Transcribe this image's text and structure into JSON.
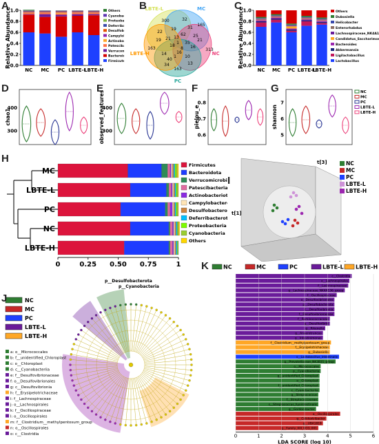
{
  "panels": {
    "A": {
      "label": "A",
      "ylabel": "Relative Abundance",
      "yticks": [
        "0.0",
        "0.2",
        "0.4",
        "0.6",
        "0.8",
        "1.0"
      ],
      "groups": [
        "NC",
        "MC",
        "PC",
        "LBTE-L",
        "LBTE-H"
      ],
      "legend": [
        {
          "name": "Others",
          "color": "#2e7d32"
        },
        {
          "name": "Cyanobacteria",
          "color": "#5e35b1"
        },
        {
          "name": "Proteobacteria",
          "color": "#7cb342"
        },
        {
          "name": "Deferribacterota",
          "color": "#3949ab"
        },
        {
          "name": "Desulfobacterota",
          "color": "#e65100"
        },
        {
          "name": "Campylobacterota",
          "color": "#8e24aa"
        },
        {
          "name": "Actinobacteriota",
          "color": "#ffa726"
        },
        {
          "name": "Patescibacteria",
          "color": "#ff7043"
        },
        {
          "name": "Verrucomicrobiota",
          "color": "#6a1b9a"
        },
        {
          "name": "Bacteroidota",
          "color": "#d50000"
        },
        {
          "name": "Firmicutes",
          "color": "#1e40ff"
        }
      ],
      "bars": [
        [
          0.6,
          0.32,
          0.01,
          0.02,
          0.01,
          0.01,
          0.01,
          0.01,
          0.005,
          0.005,
          0.01
        ],
        [
          0.58,
          0.3,
          0.05,
          0.02,
          0.01,
          0.01,
          0.01,
          0.01,
          0.005,
          0.005,
          0.0
        ],
        [
          0.52,
          0.37,
          0.03,
          0.02,
          0.02,
          0.01,
          0.01,
          0.01,
          0.005,
          0.005,
          0.0
        ],
        [
          0.6,
          0.3,
          0.03,
          0.02,
          0.01,
          0.01,
          0.01,
          0.01,
          0.005,
          0.005,
          0.0
        ],
        [
          0.55,
          0.36,
          0.02,
          0.02,
          0.01,
          0.01,
          0.01,
          0.01,
          0.005,
          0.005,
          0.0
        ]
      ]
    },
    "B": {
      "label": "B",
      "sets": [
        {
          "name": "LBTE-L",
          "color": "#d4e157"
        },
        {
          "name": "MC",
          "color": "#42a5f5"
        },
        {
          "name": "NC",
          "color": "#ec407a"
        },
        {
          "name": "PC",
          "color": "#26a69a"
        },
        {
          "name": "LBTE-H",
          "color": "#ff9800"
        }
      ],
      "numbers": [
        "300",
        "32",
        "165",
        "22",
        "19",
        "31",
        "163",
        "21",
        "62",
        "25",
        "313",
        "18",
        "35",
        "14",
        "16",
        "16",
        "13",
        "8",
        "40",
        "10",
        "1",
        "163",
        "19",
        "21",
        "34",
        "13",
        "1"
      ]
    },
    "C": {
      "label": "C",
      "ylabel": "Relative Abundance",
      "yticks": [
        "0.0",
        "0.2",
        "0.4",
        "0.6",
        "0.8",
        "1.0"
      ],
      "groups": [
        "NC",
        "MC",
        "PC",
        "LBTE-L",
        "LBTE-H"
      ],
      "legend": [
        {
          "name": "Others",
          "color": "#d50000"
        },
        {
          "name": "Dubosiella",
          "color": "#2e7d32"
        },
        {
          "name": "Helicobacter",
          "color": "#3949ab"
        },
        {
          "name": "Enterorhabdus",
          "color": "#8d6e63"
        },
        {
          "name": "Lachnospiraceae_NK4A136_group",
          "color": "#6a1b9a"
        },
        {
          "name": "Candidatus_Saccharimonas",
          "color": "#ffa726"
        },
        {
          "name": "Bacteroides",
          "color": "#9c27b0"
        },
        {
          "name": "Akkermansia",
          "color": "#1a237e"
        },
        {
          "name": "Ligilactobacillus",
          "color": "#c2185b"
        },
        {
          "name": "Lactobacillus",
          "color": "#1e40ff"
        }
      ],
      "bars": [
        [
          0.7,
          0.08,
          0.02,
          0.02,
          0.01,
          0.01,
          0.01,
          0.01,
          0.02,
          0.12
        ],
        [
          0.78,
          0.05,
          0.02,
          0.02,
          0.01,
          0.01,
          0.01,
          0.01,
          0.02,
          0.07
        ],
        [
          0.6,
          0.03,
          0.02,
          0.02,
          0.04,
          0.01,
          0.01,
          0.01,
          0.02,
          0.24
        ],
        [
          0.72,
          0.08,
          0.02,
          0.02,
          0.01,
          0.01,
          0.01,
          0.01,
          0.02,
          0.1
        ],
        [
          0.74,
          0.03,
          0.02,
          0.02,
          0.01,
          0.01,
          0.01,
          0.01,
          0.02,
          0.13
        ]
      ]
    },
    "D": {
      "label": "D",
      "ylabel": "chao1",
      "yticks": [
        "300",
        "400"
      ]
    },
    "E": {
      "label": "E",
      "ylabel": "observed_features",
      "yticks": [
        "300",
        "400"
      ]
    },
    "F": {
      "label": "F",
      "ylabel": "pielou_e",
      "yticks": [
        "0.6",
        "0.7",
        "0.8"
      ]
    },
    "G": {
      "label": "G",
      "ylabel": "shannon",
      "yticks": [
        "5",
        "6",
        "7"
      ],
      "legend": [
        {
          "name": "NC",
          "color": "#2e7d32"
        },
        {
          "name": "MC",
          "color": "#c62828"
        },
        {
          "name": "PC",
          "color": "#283593"
        },
        {
          "name": "LBTE-L",
          "color": "#9c27b0"
        },
        {
          "name": "LBTE-H",
          "color": "#ec407a"
        }
      ]
    },
    "H": {
      "label": "H",
      "xlabel": "Relative Abundance in Phylum Level",
      "xticks": [
        "0",
        "0.25",
        "0.50",
        "0.75",
        "1"
      ],
      "rows": [
        "MC",
        "LBTE-L",
        "PC",
        "NC",
        "LBTE-H"
      ],
      "legend": [
        {
          "name": "Firmicutes",
          "color": "#dc143c"
        },
        {
          "name": "Bacteroidota",
          "color": "#1e3cff"
        },
        {
          "name": "Verrucomicrobiota",
          "color": "#2e8b57"
        },
        {
          "name": "Patescibacteria",
          "color": "#e06aa0"
        },
        {
          "name": "Actinobacteriota",
          "color": "#8a2be2"
        },
        {
          "name": "Campylobacterota",
          "color": "#ffe4b5"
        },
        {
          "name": "Desulfobacterota",
          "color": "#cd853f"
        },
        {
          "name": "Deferribacterota",
          "color": "#00bfff"
        },
        {
          "name": "Proteobacteria",
          "color": "#7cfc00"
        },
        {
          "name": "Cyanobacteria",
          "color": "#9acd32"
        },
        {
          "name": "Others",
          "color": "#ffd700"
        }
      ],
      "bars": [
        [
          0.58,
          0.28,
          0.05,
          0.02,
          0.01,
          0.01,
          0.01,
          0.01,
          0.01,
          0.01,
          0.01
        ],
        [
          0.6,
          0.3,
          0.02,
          0.02,
          0.01,
          0.01,
          0.01,
          0.01,
          0.01,
          0.005,
          0.005
        ],
        [
          0.52,
          0.37,
          0.02,
          0.02,
          0.02,
          0.01,
          0.01,
          0.01,
          0.01,
          0.005,
          0.005
        ],
        [
          0.6,
          0.32,
          0.01,
          0.02,
          0.01,
          0.01,
          0.01,
          0.01,
          0.005,
          0.005,
          0.01
        ],
        [
          0.55,
          0.37,
          0.01,
          0.02,
          0.01,
          0.01,
          0.01,
          0.01,
          0.005,
          0.005,
          0.0
        ]
      ]
    },
    "I": {
      "label": "I",
      "axes": [
        "t[1]",
        "t[2]",
        "t[3]"
      ],
      "legend": [
        {
          "name": "NC",
          "color": "#2e7d32"
        },
        {
          "name": "MC",
          "color": "#c62828"
        },
        {
          "name": "PC",
          "color": "#1e40ff"
        },
        {
          "name": "LBTE-L",
          "color": "#ce93d8"
        },
        {
          "name": "LBTE-H",
          "color": "#9c27b0"
        }
      ]
    },
    "J": {
      "label": "J",
      "legend": [
        {
          "name": "NC",
          "color": "#2e7d32"
        },
        {
          "name": "MC",
          "color": "#c62828"
        },
        {
          "name": "PC",
          "color": "#1e40ff"
        },
        {
          "name": "LBTE-L",
          "color": "#6a1b9a"
        },
        {
          "name": "LBTE-H",
          "color": "#ffa726"
        }
      ],
      "top_labels": [
        "p__Desulfobacterota",
        "p__Cyanobacteria"
      ],
      "taxa": [
        {
          "text": "a: o__Micrococcales",
          "color": "#2e7d32"
        },
        {
          "text": "b: f__unidentified_Chloroplast",
          "color": "#2e7d32"
        },
        {
          "text": "c: o__Chloroplast",
          "color": "#2e7d32"
        },
        {
          "text": "d: c__Cyanobacteriia",
          "color": "#2e7d32"
        },
        {
          "text": "e: f__Desulfovibrionaceae",
          "color": "#6a1b9a"
        },
        {
          "text": "f: o__Desulfovibrionales",
          "color": "#6a1b9a"
        },
        {
          "text": "g: c__Desulfovibrionia",
          "color": "#6a1b9a"
        },
        {
          "text": "h: f__Erysipelotrichaceae",
          "color": "#ffa726"
        },
        {
          "text": "i: f__Lachnospiraceae",
          "color": "#6a1b9a"
        },
        {
          "text": "j: o__Lachnospirales",
          "color": "#6a1b9a"
        },
        {
          "text": "k: f__Oscillospiraceae",
          "color": "#6a1b9a"
        },
        {
          "text": "l: o__Oscillospirales",
          "color": "#6a1b9a"
        },
        {
          "text": "m: f__Clostridium__methylpentosum_group",
          "color": "#ffa726"
        },
        {
          "text": "n: o__Oscillospirales",
          "color": "#c62828"
        },
        {
          "text": "o: c__Clostridia",
          "color": "#6a1b9a"
        }
      ]
    },
    "K": {
      "label": "K",
      "xlabel": "LDA SCORE (log 10)",
      "xticks": [
        "0",
        "1",
        "2",
        "3",
        "4",
        "5",
        "6"
      ],
      "legend": [
        {
          "name": "NC",
          "color": "#2e7d32"
        },
        {
          "name": "MC",
          "color": "#c62828"
        },
        {
          "name": "PC",
          "color": "#1e40ff"
        },
        {
          "name": "LBTE-L",
          "color": "#6a1b9a"
        },
        {
          "name": "LBTE-H",
          "color": "#ffa726"
        }
      ],
      "bars": [
        {
          "label": "c__Clostridia",
          "value": 5.05,
          "color": "#6a1b9a"
        },
        {
          "label": "o__Lachnospirales",
          "value": 4.95,
          "color": "#6a1b9a"
        },
        {
          "label": "f__Lachnospiraceae",
          "value": 4.9,
          "color": "#6a1b9a"
        },
        {
          "label": "g__Lachnospiraceae_NK4A136_group",
          "value": 4.75,
          "color": "#6a1b9a"
        },
        {
          "label": "f__Oscillospiraceae",
          "value": 4.4,
          "color": "#6a1b9a"
        },
        {
          "label": "o__Desulfovibrionales",
          "value": 4.3,
          "color": "#6a1b9a"
        },
        {
          "label": "p__Desulfobacterota",
          "value": 4.3,
          "color": "#6a1b9a"
        },
        {
          "label": "c__Desulfovibrionia",
          "value": 4.3,
          "color": "#6a1b9a"
        },
        {
          "label": "f__Desulfovibrionaceae",
          "value": 4.3,
          "color": "#6a1b9a"
        },
        {
          "label": "f__Ruminococcaceae",
          "value": 4.1,
          "color": "#6a1b9a"
        },
        {
          "label": "g__Desulfovibrio",
          "value": 4.1,
          "color": "#6a1b9a"
        },
        {
          "label": "g__Rikenella",
          "value": 3.9,
          "color": "#6a1b9a"
        },
        {
          "label": "g__Anaerotruncus",
          "value": 3.8,
          "color": "#6a1b9a"
        },
        {
          "label": "g__Intestinimonas",
          "value": 3.8,
          "color": "#6a1b9a"
        },
        {
          "label": "f__Clostridium__methylpentosum_group",
          "value": 4.15,
          "color": "#ffa726"
        },
        {
          "label": "f__Erysipelotrichaceae",
          "value": 4.1,
          "color": "#ffa726"
        },
        {
          "label": "g__Dubosiella",
          "value": 4.1,
          "color": "#ffa726"
        },
        {
          "label": "s__Lactobacillus_intestinalis",
          "value": 4.5,
          "color": "#1e40ff"
        },
        {
          "label": "g__Prevotellaceae_NK3B31_group",
          "value": 4.35,
          "color": "#2e7d32"
        },
        {
          "label": "o__Micrococcales",
          "value": 3.7,
          "color": "#2e7d32"
        },
        {
          "label": "p__Cyanobacteria",
          "value": 3.7,
          "color": "#2e7d32"
        },
        {
          "label": "g__unidentified_Chloroplast",
          "value": 3.65,
          "color": "#2e7d32"
        },
        {
          "label": "o__Chloroplast",
          "value": 3.65,
          "color": "#2e7d32"
        },
        {
          "label": "f__unidentified_Chloroplast",
          "value": 3.65,
          "color": "#2e7d32"
        },
        {
          "label": "c__Cyanobacteriia",
          "value": 3.65,
          "color": "#2e7d32"
        },
        {
          "label": "g__Streptococcus",
          "value": 3.6,
          "color": "#2e7d32"
        },
        {
          "label": "f__Streptococcaceae",
          "value": 3.6,
          "color": "#2e7d32"
        },
        {
          "label": "s__Streptococcus_hyointestinalis",
          "value": 3.6,
          "color": "#2e7d32"
        },
        {
          "label": "g__Gordonibacter",
          "value": 3.5,
          "color": "#2e7d32"
        },
        {
          "label": "o__Oscillospirales",
          "value": 4.55,
          "color": "#c62828"
        },
        {
          "label": "g__Colidextribacter",
          "value": 3.95,
          "color": "#c62828"
        },
        {
          "label": "g__UBA1819",
          "value": 3.8,
          "color": "#c62828"
        },
        {
          "label": "g__Family_XIII_UCG_001",
          "value": 3.6,
          "color": "#c62828"
        }
      ]
    }
  }
}
